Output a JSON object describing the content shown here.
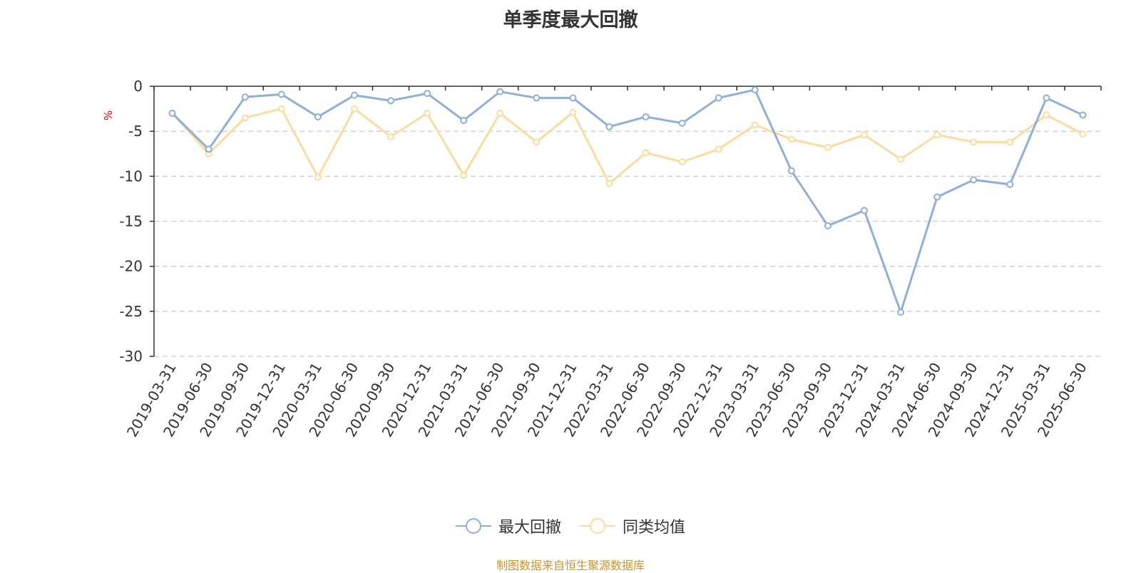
{
  "chart_data": {
    "type": "line",
    "title": "单季度最大回撤",
    "ylabel": "%",
    "ylim": [
      -30,
      0
    ],
    "yticks": [
      0,
      -5,
      -10,
      -15,
      -20,
      -25,
      -30
    ],
    "grid": true,
    "legend_position": "bottom",
    "categories": [
      "2019-03-31",
      "2019-06-30",
      "2019-09-30",
      "2019-12-31",
      "2020-03-31",
      "2020-06-30",
      "2020-09-30",
      "2020-12-31",
      "2021-03-31",
      "2021-06-30",
      "2021-09-30",
      "2021-12-31",
      "2022-03-31",
      "2022-06-30",
      "2022-09-30",
      "2022-12-31",
      "2023-03-31",
      "2023-06-30",
      "2023-09-30",
      "2023-12-31",
      "2024-03-31",
      "2024-06-30",
      "2024-09-30",
      "2024-12-31",
      "2025-03-31",
      "2025-06-30"
    ],
    "series": [
      {
        "name": "最大回撤",
        "color": "#8eafd9",
        "values": [
          -3.0,
          -7.0,
          -1.2,
          -0.9,
          -3.4,
          -1.0,
          -1.6,
          -0.8,
          -3.8,
          -0.6,
          -1.3,
          -1.3,
          -4.5,
          -3.4,
          -4.1,
          -1.3,
          -0.4,
          -9.4,
          -15.5,
          -13.8,
          -25.1,
          -12.3,
          -10.4,
          -10.9,
          -1.3,
          -3.2
        ]
      },
      {
        "name": "同类均值",
        "color": "#fbdb9f",
        "values": [
          -3.0,
          -7.5,
          -3.5,
          -2.5,
          -10.1,
          -2.5,
          -5.6,
          -3.0,
          -9.9,
          -3.0,
          -6.2,
          -2.9,
          -10.8,
          -7.4,
          -8.4,
          -7.0,
          -4.3,
          -5.9,
          -6.8,
          -5.4,
          -8.1,
          -5.4,
          -6.2,
          -6.2,
          -3.2,
          -5.3
        ]
      }
    ]
  },
  "source_note": "制图数据来自恒生聚源数据库"
}
